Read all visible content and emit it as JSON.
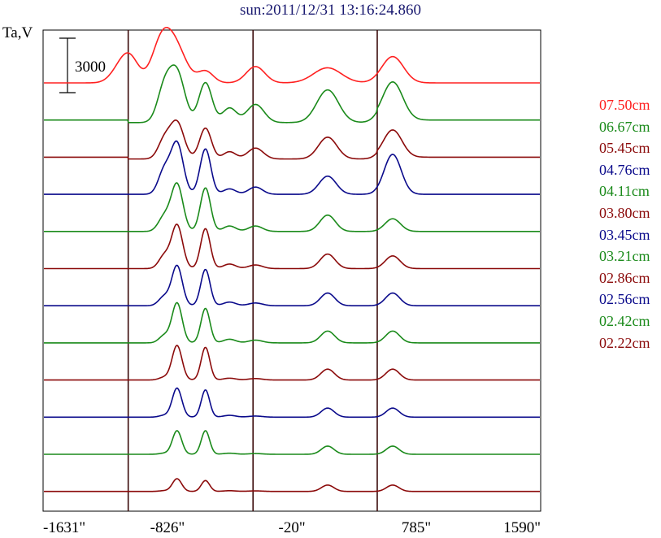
{
  "chart_data": {
    "type": "line",
    "title": "sun:2011/12/31 13:16:24.860",
    "ylabel": "Ta,V",
    "scale_bar_label": "3000",
    "x_ticks": [
      {
        "value": -1631,
        "label": "-1631\""
      },
      {
        "value": -826,
        "label": "-826\""
      },
      {
        "value": -20,
        "label": "-20\""
      },
      {
        "value": 785,
        "label": "785\""
      },
      {
        "value": 1590,
        "label": "1590\""
      }
    ],
    "xlim": [
      -1631,
      1590
    ],
    "vertical_lines": [
      -1080,
      -272,
      532
    ],
    "grid": false,
    "legend_position": "right",
    "series": [
      {
        "name": "07.50cm",
        "color": "#ff2020",
        "baseline": 0,
        "peaks": [
          [
            -1131,
            780,
            60
          ],
          [
            -1064,
            1150,
            55
          ],
          [
            -874,
            1500,
            60
          ],
          [
            -805,
            1850,
            70
          ],
          [
            -735,
            600,
            60
          ],
          [
            -580,
            650,
            50
          ],
          [
            -256,
            900,
            60
          ],
          [
            210,
            830,
            90
          ],
          [
            632,
            1450,
            70
          ]
        ]
      },
      {
        "name": "06.67cm",
        "color": "#1a8a1a",
        "baseline": -140,
        "peaks": [
          [
            -847,
            1800,
            45
          ],
          [
            -764,
            2700,
            50
          ],
          [
            -580,
            2200,
            42
          ],
          [
            -424,
            800,
            45
          ],
          [
            -256,
            1000,
            55
          ],
          [
            211,
            1800,
            70
          ],
          [
            632,
            2100,
            65
          ]
        ]
      },
      {
        "name": "05.45cm",
        "color": "#8b0a0a",
        "baseline": -100,
        "peaks": [
          [
            -847,
            1000,
            40
          ],
          [
            -764,
            2000,
            45
          ],
          [
            -580,
            1700,
            38
          ],
          [
            -424,
            400,
            40
          ],
          [
            -256,
            600,
            50
          ],
          [
            211,
            1200,
            60
          ],
          [
            632,
            1500,
            60
          ]
        ]
      },
      {
        "name": "04.76cm",
        "color": "#0a0a8b",
        "baseline": 0,
        "peaks": [
          [
            -847,
            1300,
            38
          ],
          [
            -764,
            2800,
            40
          ],
          [
            -580,
            2500,
            35
          ],
          [
            -424,
            300,
            40
          ],
          [
            -256,
            400,
            45
          ],
          [
            211,
            1000,
            55
          ],
          [
            632,
            2200,
            55
          ]
        ]
      },
      {
        "name": "04.11cm",
        "color": "#1a8a1a",
        "baseline": 0,
        "peaks": [
          [
            -847,
            800,
            38
          ],
          [
            -764,
            2600,
            38
          ],
          [
            -580,
            2400,
            33
          ],
          [
            -424,
            300,
            40
          ],
          [
            -256,
            300,
            45
          ],
          [
            211,
            900,
            50
          ],
          [
            632,
            700,
            50
          ]
        ]
      },
      {
        "name": "03.80cm",
        "color": "#8b0a0a",
        "baseline": 0,
        "peaks": [
          [
            -847,
            700,
            35
          ],
          [
            -764,
            2400,
            36
          ],
          [
            -580,
            2200,
            31
          ],
          [
            -424,
            250,
            40
          ],
          [
            -256,
            200,
            45
          ],
          [
            211,
            800,
            48
          ],
          [
            632,
            700,
            48
          ]
        ]
      },
      {
        "name": "03.45cm",
        "color": "#0a0a8b",
        "baseline": 0,
        "peaks": [
          [
            -847,
            500,
            35
          ],
          [
            -764,
            2200,
            34
          ],
          [
            -580,
            2000,
            30
          ],
          [
            -424,
            200,
            40
          ],
          [
            -256,
            150,
            45
          ],
          [
            211,
            700,
            46
          ],
          [
            632,
            700,
            46
          ]
        ]
      },
      {
        "name": "03.21cm",
        "color": "#1a8a1a",
        "baseline": 0,
        "peaks": [
          [
            -847,
            400,
            33
          ],
          [
            -764,
            2200,
            33
          ],
          [
            -580,
            1900,
            29
          ],
          [
            -424,
            200,
            40
          ],
          [
            -256,
            150,
            45
          ],
          [
            211,
            650,
            45
          ],
          [
            632,
            650,
            45
          ]
        ]
      },
      {
        "name": "02.86cm",
        "color": "#8b0a0a",
        "baseline": 0,
        "peaks": [
          [
            -847,
            150,
            33
          ],
          [
            -764,
            1900,
            32
          ],
          [
            -580,
            1800,
            28
          ],
          [
            -424,
            100,
            40
          ],
          [
            -256,
            80,
            45
          ],
          [
            211,
            600,
            44
          ],
          [
            632,
            600,
            44
          ]
        ]
      },
      {
        "name": "02.56cm",
        "color": "#0a0a8b",
        "baseline": 0,
        "peaks": [
          [
            -847,
            100,
            32
          ],
          [
            -764,
            1600,
            31
          ],
          [
            -580,
            1500,
            27
          ],
          [
            -424,
            100,
            40
          ],
          [
            -256,
            60,
            45
          ],
          [
            211,
            500,
            42
          ],
          [
            632,
            500,
            42
          ]
        ]
      },
      {
        "name": "02.42cm",
        "color": "#1a8a1a",
        "baseline": 0,
        "peaks": [
          [
            -847,
            60,
            32
          ],
          [
            -764,
            1300,
            30
          ],
          [
            -580,
            1300,
            27
          ],
          [
            -424,
            60,
            40
          ],
          [
            -256,
            40,
            45
          ],
          [
            211,
            450,
            41
          ],
          [
            632,
            450,
            41
          ]
        ]
      },
      {
        "name": "02.22cm",
        "color": "#8b0a0a",
        "baseline": 0,
        "peaks": [
          [
            -847,
            40,
            32
          ],
          [
            -764,
            700,
            30
          ],
          [
            -580,
            600,
            27
          ],
          [
            -424,
            40,
            40
          ],
          [
            -256,
            30,
            45
          ],
          [
            211,
            350,
            40
          ],
          [
            632,
            350,
            40
          ]
        ]
      }
    ]
  }
}
